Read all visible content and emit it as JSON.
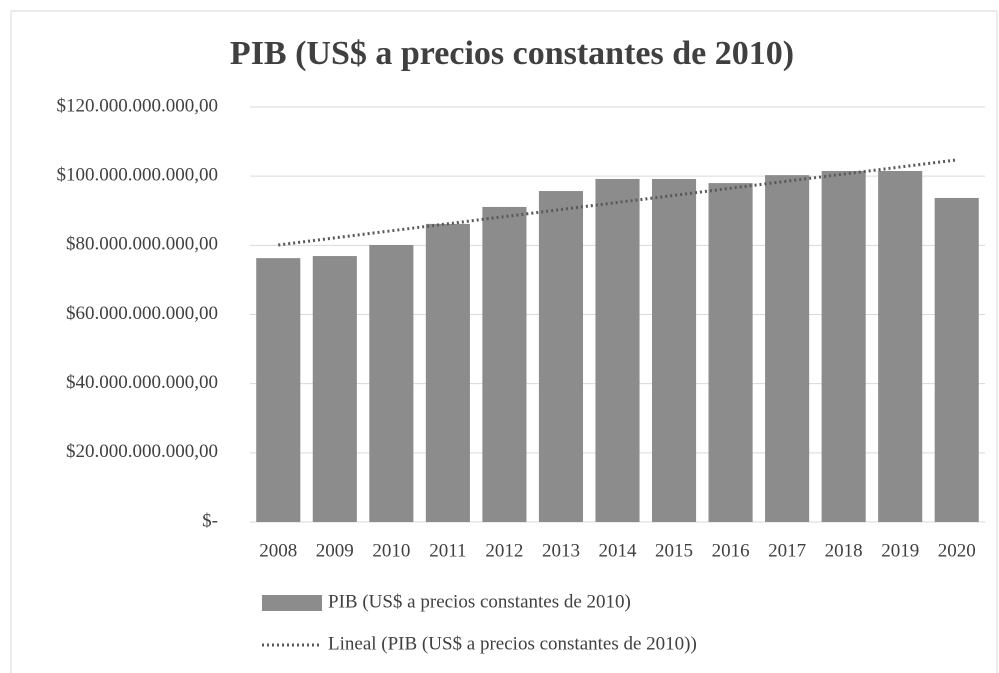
{
  "chart_data": {
    "type": "bar",
    "title": "PIB (US$ a precios constantes de 2010)",
    "categories": [
      "2008",
      "2009",
      "2010",
      "2011",
      "2012",
      "2013",
      "2014",
      "2015",
      "2016",
      "2017",
      "2018",
      "2019",
      "2020"
    ],
    "series": [
      {
        "name": "PIB (US$ a precios constantes de 2010)",
        "type": "bar",
        "color": "#8c8c8c",
        "values": [
          76300000000,
          76900000000,
          80100000000,
          86200000000,
          91100000000,
          95700000000,
          99200000000,
          99200000000,
          98000000000,
          100300000000,
          101500000000,
          101500000000,
          93700000000
        ]
      },
      {
        "name": "Lineal (PIB (US$ a precios constantes de 2010))",
        "type": "line",
        "style": "dotted",
        "color": "#595959",
        "values": [
          80100000000,
          82150000000,
          84200000000,
          86250000000,
          88300000000,
          90350000000,
          92400000000,
          94450000000,
          96500000000,
          98550000000,
          100600000000,
          102650000000,
          104700000000
        ]
      }
    ],
    "ylim": [
      0,
      120000000000
    ],
    "yticks": [
      {
        "value": 0,
        "label": "$-"
      },
      {
        "value": 20000000000,
        "label": "$20.000.000.000,00"
      },
      {
        "value": 40000000000,
        "label": "$40.000.000.000,00"
      },
      {
        "value": 60000000000,
        "label": "$60.000.000.000,00"
      },
      {
        "value": 80000000000,
        "label": "$80.000.000.000,00"
      },
      {
        "value": 100000000000,
        "label": "$100.000.000.000,00"
      },
      {
        "value": 120000000000,
        "label": "$120.000.000.000,00"
      }
    ],
    "grid": true,
    "legend": "bottom-left"
  }
}
